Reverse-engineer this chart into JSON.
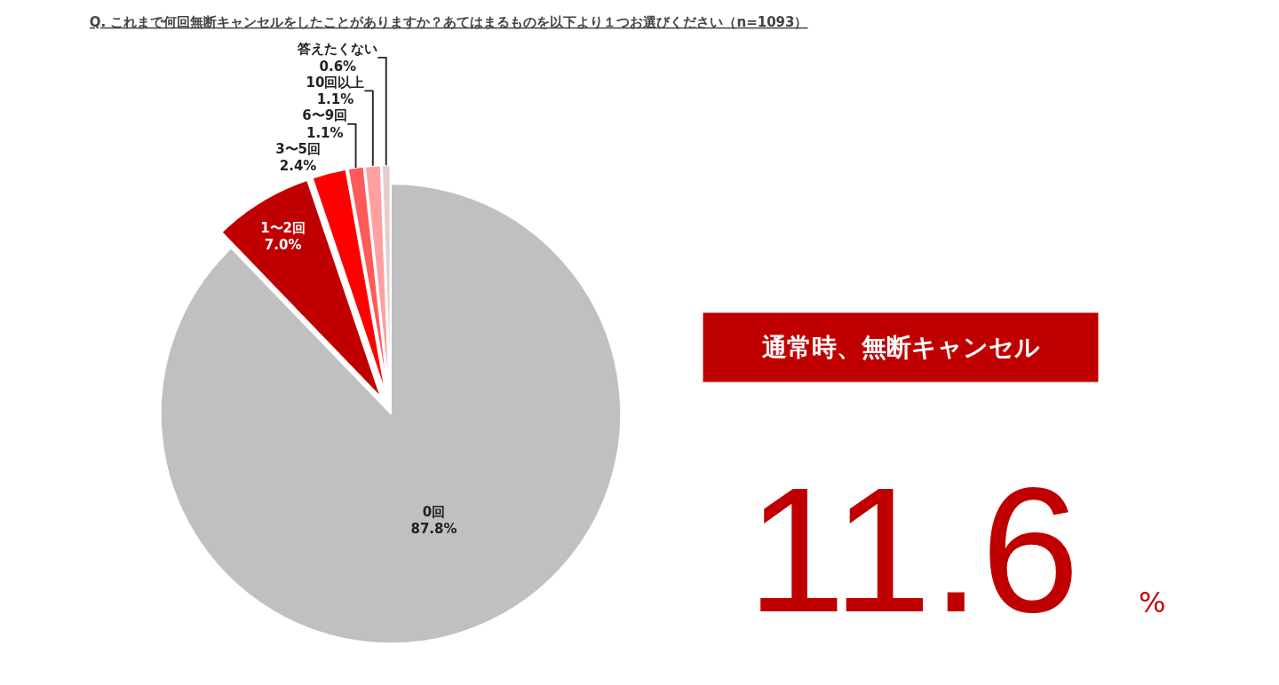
{
  "chart_data": {
    "type": "pie",
    "title": "Q. これまで何回無断キャンセルをしたことがありますか？あてはまるものを以下より１つお選びください（n=1093）",
    "categories": [
      "0回",
      "1〜2回",
      "3〜5回",
      "6〜9回",
      "10回以上",
      "答えたくない"
    ],
    "values": [
      87.8,
      7.0,
      2.4,
      1.1,
      1.1,
      0.6
    ],
    "colors": [
      "#c0c0c0",
      "#c00000",
      "#ff0000",
      "#ff5a5a",
      "#ffa0a0",
      "#e6cccc"
    ],
    "value_labels": [
      "87.8%",
      "7.0%",
      "2.4%",
      "1.1%",
      "1.1%",
      "0.6%"
    ],
    "legend": false,
    "annotations": [
      "通常時、無断キャンセル",
      "11.6",
      "%"
    ]
  }
}
